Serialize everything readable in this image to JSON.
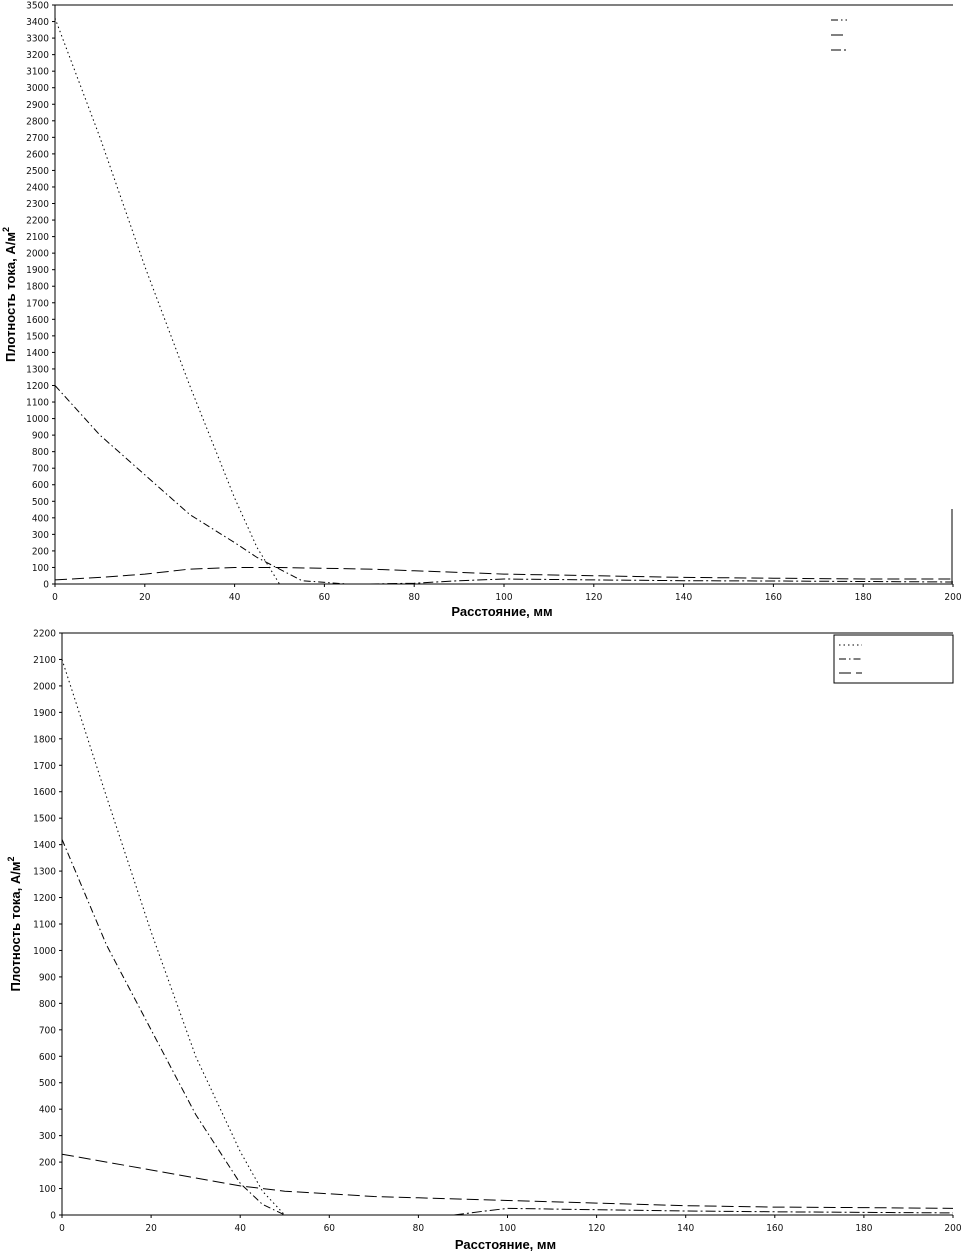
{
  "chart_data": [
    {
      "type": "line",
      "xlabel": "Расстояние, мм",
      "ylabel": "Плотность тока, А/м",
      "ylabel_sup": "2",
      "xlim": [
        0,
        200
      ],
      "ylim": [
        0,
        3500
      ],
      "x_ticks": [
        0,
        20,
        40,
        60,
        80,
        100,
        120,
        140,
        160,
        180,
        200
      ],
      "y_ticks": [
        0,
        100,
        200,
        300,
        400,
        500,
        600,
        700,
        800,
        900,
        1000,
        1100,
        1200,
        1300,
        1400,
        1500,
        1600,
        1700,
        1800,
        1900,
        2000,
        2100,
        2200,
        2300,
        2400,
        2500,
        2600,
        2700,
        2800,
        2900,
        3000,
        3100,
        3200,
        3300,
        3400,
        3500
      ],
      "x_tick_labels": [
        "0",
        "20",
        "40",
        "60",
        "80",
        "100",
        "120",
        "140",
        "160",
        "180",
        "200"
      ],
      "y_tick_labels": [
        "0",
        "100",
        "200",
        "300",
        "400",
        "500",
        "600",
        "700",
        "800",
        "900",
        "1000",
        "1100",
        "1200",
        "1300",
        "1400",
        "1500",
        "1600",
        "1700",
        "1800",
        "1900",
        "2000",
        "2100",
        "2200",
        "2300",
        "2400",
        "2500",
        "2600",
        "2700",
        "2800",
        "2900",
        "3000",
        "3100",
        "3200",
        "3300",
        "3400",
        "3500"
      ],
      "legend_position": "top-right",
      "series": [
        {
          "style": "dot",
          "x": [
            0,
            10,
            20,
            30,
            40,
            45,
            50,
            55
          ],
          "y": [
            3420,
            2700,
            1920,
            1200,
            520,
            220,
            0,
            0
          ]
        },
        {
          "style": "dashdot",
          "x": [
            0,
            10,
            20,
            30,
            40,
            45,
            50,
            55,
            65
          ],
          "y": [
            1200,
            900,
            660,
            420,
            250,
            160,
            90,
            20,
            0
          ]
        },
        {
          "style": "dash",
          "x": [
            0,
            10,
            20,
            30,
            40,
            50,
            60,
            70,
            80,
            90,
            100,
            120,
            140,
            160,
            180,
            200
          ],
          "y": [
            25,
            40,
            60,
            90,
            100,
            100,
            95,
            90,
            80,
            70,
            60,
            50,
            40,
            35,
            30,
            30
          ]
        },
        {
          "style": "dashdot2",
          "x": [
            70,
            80,
            90,
            100,
            120,
            140,
            160,
            180,
            200
          ],
          "y": [
            0,
            5,
            20,
            30,
            25,
            20,
            18,
            15,
            12
          ]
        }
      ]
    },
    {
      "type": "line",
      "xlabel": "Расстояние, мм",
      "ylabel": "Плотность тока, А/м",
      "ylabel_sup": "2",
      "xlim": [
        0,
        200
      ],
      "ylim": [
        0,
        2200
      ],
      "x_ticks": [
        0,
        20,
        40,
        60,
        80,
        100,
        120,
        140,
        160,
        180,
        200
      ],
      "y_ticks": [
        0,
        100,
        200,
        300,
        400,
        500,
        600,
        700,
        800,
        900,
        1000,
        1100,
        1200,
        1300,
        1400,
        1500,
        1600,
        1700,
        1800,
        1900,
        2000,
        2100,
        2200
      ],
      "x_tick_labels": [
        "0",
        "20",
        "40",
        "60",
        "80",
        "100",
        "120",
        "140",
        "160",
        "180",
        "200"
      ],
      "y_tick_labels": [
        "0",
        "100",
        "200",
        "300",
        "400",
        "500",
        "600",
        "700",
        "800",
        "900",
        "1000",
        "1100",
        "1200",
        "1300",
        "1400",
        "1500",
        "1600",
        "1700",
        "1800",
        "1900",
        "2000",
        "2100",
        "2200"
      ],
      "legend_position": "top-right",
      "series": [
        {
          "style": "dot",
          "x": [
            0,
            10,
            20,
            30,
            40,
            45,
            50,
            55
          ],
          "y": [
            2100,
            1580,
            1070,
            600,
            240,
            90,
            0,
            0
          ]
        },
        {
          "style": "dashdot",
          "x": [
            0,
            10,
            20,
            30,
            40,
            45,
            50,
            55
          ],
          "y": [
            1420,
            1020,
            700,
            380,
            120,
            40,
            0,
            0
          ]
        },
        {
          "style": "dash",
          "x": [
            0,
            10,
            20,
            30,
            40,
            50,
            60,
            70,
            80,
            90,
            100,
            120,
            140,
            160,
            180,
            200
          ],
          "y": [
            230,
            200,
            170,
            140,
            110,
            90,
            80,
            70,
            65,
            60,
            55,
            45,
            35,
            30,
            28,
            25
          ]
        },
        {
          "style": "dashdot2",
          "x": [
            88,
            95,
            100,
            120,
            140,
            160,
            180,
            200
          ],
          "y": [
            0,
            15,
            25,
            20,
            15,
            12,
            10,
            8
          ]
        }
      ]
    }
  ]
}
